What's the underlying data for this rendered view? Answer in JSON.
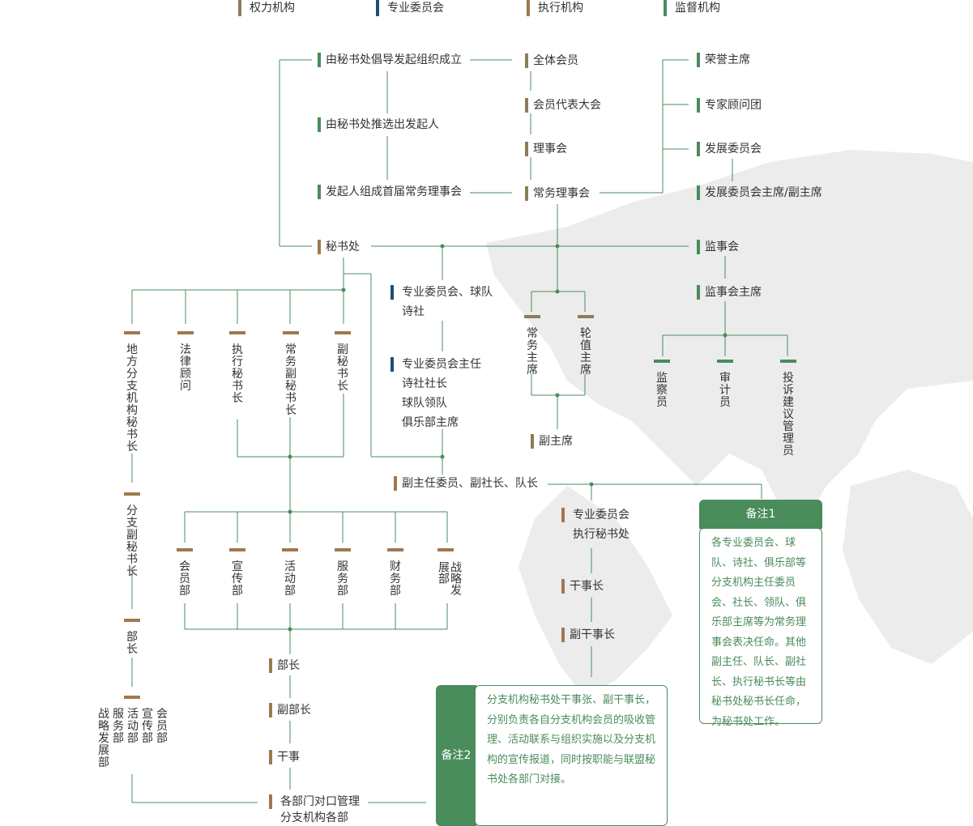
{
  "legend": [
    {
      "label": "权力机构",
      "color": "#8b7d5a"
    },
    {
      "label": "专业委员会",
      "color": "#1f4e79"
    },
    {
      "label": "执行机构",
      "color": "#a0784f"
    },
    {
      "label": "监督机构",
      "color": "#4a8c5c"
    }
  ],
  "colors": {
    "line": "#4a8c5c",
    "power": "#8b7d5a",
    "committee": "#1f4e79",
    "exec": "#a0784f",
    "supervise": "#4a8c5c",
    "map": "#e8e8e8"
  },
  "power": {
    "initiated": "由秘书处倡导发起组织成立",
    "elect": "由秘书处推选出发起人",
    "first_board": "发起人组成首届常务理事会",
    "all_members": "全体会员",
    "congress": "会员代表大会",
    "council": "理事会",
    "standing": "常务理事会"
  },
  "honor": {
    "chair": "荣誉主席",
    "experts": "专家顾问团",
    "dev_committee": "发展委员会",
    "dev_chair": "发展委员会主席/副主席"
  },
  "secretariat": "秘书处",
  "supervision": {
    "board": "监事会",
    "chair": "监事会主席",
    "members": [
      "监察员",
      "审计员",
      "投诉建议管理员"
    ]
  },
  "committees": {
    "title_line1": "专业委员会、球队",
    "title_line2": "诗社",
    "head_lines": [
      "专业委员会主任",
      "诗社社长",
      "球队领队",
      "俱乐部主席"
    ],
    "deputies": "副主任委员、副社长、队长",
    "exec_sec_line1": "专业委员会",
    "exec_sec_line2": "执行秘书处",
    "director": "干事长",
    "deputy_director": "副干事长"
  },
  "chairs": {
    "standing": "常务主席",
    "rotating": "轮值主席",
    "vice": "副主席"
  },
  "sec_roles": [
    "地方分支机构秘书长",
    "法律顾问",
    "执行秘书长",
    "常务副秘书长",
    "副秘书长"
  ],
  "branch": {
    "vice_sec": "分支副秘书长",
    "minister": "部长",
    "depts": [
      "战略发展部",
      "服务部",
      "活动部",
      "宣传部",
      "会员部"
    ]
  },
  "departments": [
    "会员部",
    "宣传部",
    "活动部",
    "服务部",
    "财务部",
    "战略发展部"
  ],
  "dept_chain": {
    "head": "部长",
    "deputy": "副部长",
    "staff": "干事",
    "liaison_line1": "各部门对口管理",
    "liaison_line2": "分支机构各部"
  },
  "notes": {
    "note1_title": "备注1",
    "note1_text": "各专业委员会、球队、诗社、俱乐部等分支机构主任委员会、社长、领队、俱乐部主席等为常务理事会表决任命。其他副主任、队长、副社长、执行秘书长等由秘书处秘书长任命，为秘书处工作。",
    "note2_title": "备注2",
    "note2_text": "分支机构秘书处干事张、副干事长，分别负责各自分支机构会员的吸收管理、活动联系与组织实施以及分支机构的宣传报道，同时按职能与联盟秘书处各部门对接。"
  }
}
